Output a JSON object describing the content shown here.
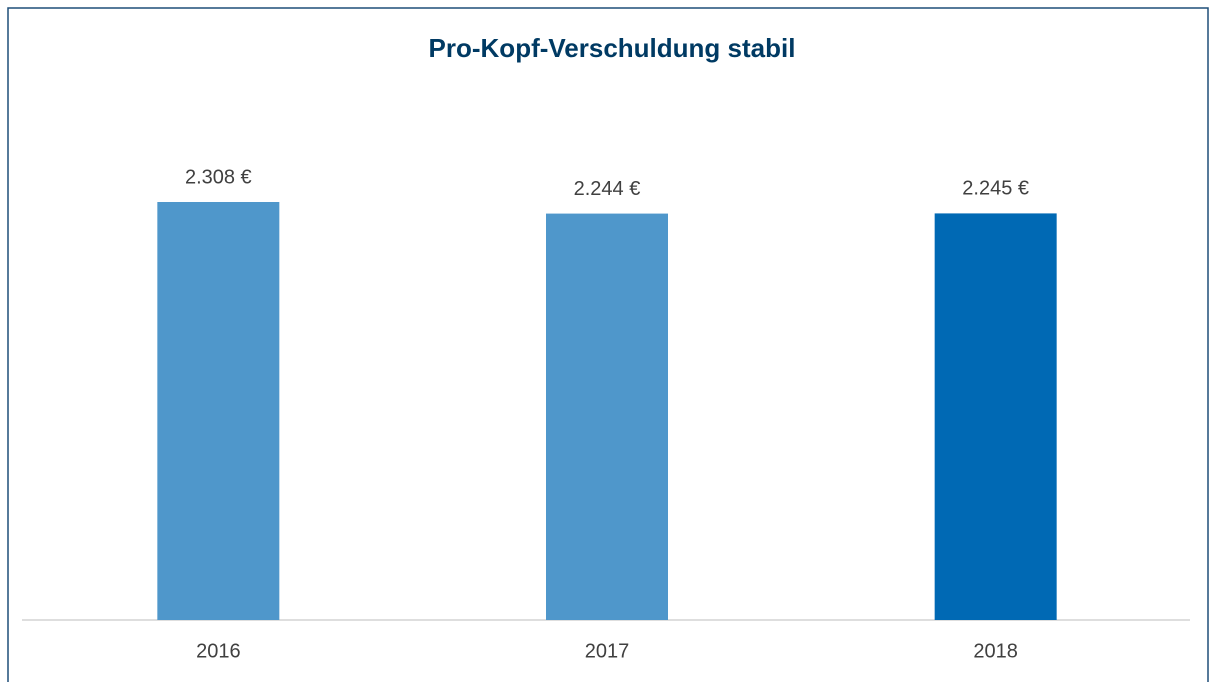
{
  "chart_data": {
    "type": "bar",
    "title": "Pro-Kopf-Verschuldung stabil",
    "categories": [
      "2016",
      "2017",
      "2018"
    ],
    "values": [
      2308,
      2244,
      2245
    ],
    "value_labels": [
      "2.308 €",
      "2.244 €",
      "2.245 €"
    ],
    "colors": [
      "#4f97cb",
      "#4f97cb",
      "#0069b4"
    ]
  }
}
